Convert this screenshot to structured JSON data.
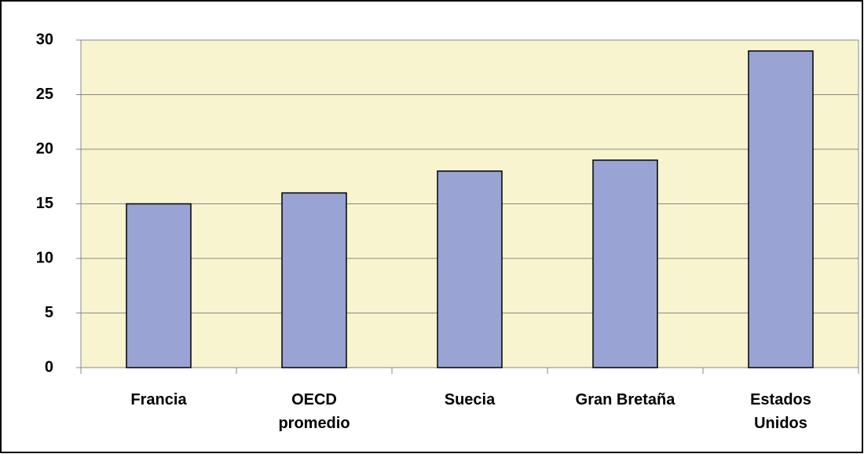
{
  "chart_data": {
    "type": "bar",
    "categories": [
      "Francia",
      "OECD\npromedio",
      "Suecia",
      "Gran Bretaña",
      "Estados\nUnidos"
    ],
    "values": [
      15,
      16,
      18,
      19,
      29
    ],
    "color": "#99a4d4",
    "background": "#f7f4cf",
    "ylim": [
      0,
      30
    ],
    "yticks": [
      0,
      5,
      10,
      15,
      20,
      25,
      30
    ],
    "grid": true
  }
}
